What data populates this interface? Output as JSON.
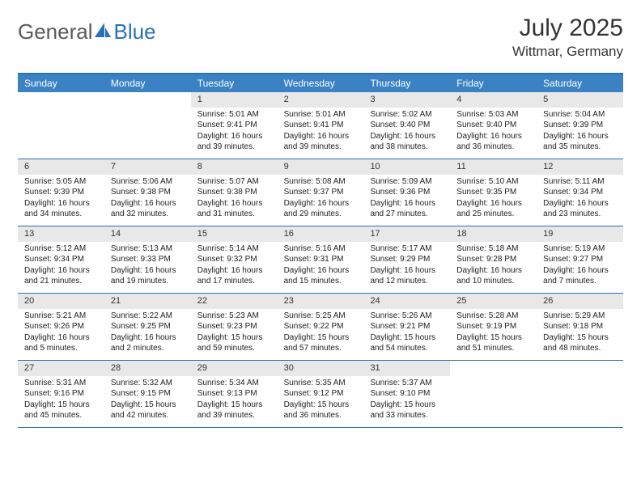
{
  "brand": {
    "general": "General",
    "blue": "Blue"
  },
  "title": "July 2025",
  "location": "Wittmar, Germany",
  "colors": {
    "header_bar": "#3a82c4",
    "border": "#2a71b8",
    "daynum_bg": "#e8e8e8",
    "text": "#222222",
    "logo_gray": "#5a5a5a",
    "logo_blue": "#2a71b8"
  },
  "day_names": [
    "Sunday",
    "Monday",
    "Tuesday",
    "Wednesday",
    "Thursday",
    "Friday",
    "Saturday"
  ],
  "weeks": [
    [
      {
        "empty": true
      },
      {
        "empty": true
      },
      {
        "num": "1",
        "sunrise": "Sunrise: 5:01 AM",
        "sunset": "Sunset: 9:41 PM",
        "day1": "Daylight: 16 hours",
        "day2": "and 39 minutes."
      },
      {
        "num": "2",
        "sunrise": "Sunrise: 5:01 AM",
        "sunset": "Sunset: 9:41 PM",
        "day1": "Daylight: 16 hours",
        "day2": "and 39 minutes."
      },
      {
        "num": "3",
        "sunrise": "Sunrise: 5:02 AM",
        "sunset": "Sunset: 9:40 PM",
        "day1": "Daylight: 16 hours",
        "day2": "and 38 minutes."
      },
      {
        "num": "4",
        "sunrise": "Sunrise: 5:03 AM",
        "sunset": "Sunset: 9:40 PM",
        "day1": "Daylight: 16 hours",
        "day2": "and 36 minutes."
      },
      {
        "num": "5",
        "sunrise": "Sunrise: 5:04 AM",
        "sunset": "Sunset: 9:39 PM",
        "day1": "Daylight: 16 hours",
        "day2": "and 35 minutes."
      }
    ],
    [
      {
        "num": "6",
        "sunrise": "Sunrise: 5:05 AM",
        "sunset": "Sunset: 9:39 PM",
        "day1": "Daylight: 16 hours",
        "day2": "and 34 minutes."
      },
      {
        "num": "7",
        "sunrise": "Sunrise: 5:06 AM",
        "sunset": "Sunset: 9:38 PM",
        "day1": "Daylight: 16 hours",
        "day2": "and 32 minutes."
      },
      {
        "num": "8",
        "sunrise": "Sunrise: 5:07 AM",
        "sunset": "Sunset: 9:38 PM",
        "day1": "Daylight: 16 hours",
        "day2": "and 31 minutes."
      },
      {
        "num": "9",
        "sunrise": "Sunrise: 5:08 AM",
        "sunset": "Sunset: 9:37 PM",
        "day1": "Daylight: 16 hours",
        "day2": "and 29 minutes."
      },
      {
        "num": "10",
        "sunrise": "Sunrise: 5:09 AM",
        "sunset": "Sunset: 9:36 PM",
        "day1": "Daylight: 16 hours",
        "day2": "and 27 minutes."
      },
      {
        "num": "11",
        "sunrise": "Sunrise: 5:10 AM",
        "sunset": "Sunset: 9:35 PM",
        "day1": "Daylight: 16 hours",
        "day2": "and 25 minutes."
      },
      {
        "num": "12",
        "sunrise": "Sunrise: 5:11 AM",
        "sunset": "Sunset: 9:34 PM",
        "day1": "Daylight: 16 hours",
        "day2": "and 23 minutes."
      }
    ],
    [
      {
        "num": "13",
        "sunrise": "Sunrise: 5:12 AM",
        "sunset": "Sunset: 9:34 PM",
        "day1": "Daylight: 16 hours",
        "day2": "and 21 minutes."
      },
      {
        "num": "14",
        "sunrise": "Sunrise: 5:13 AM",
        "sunset": "Sunset: 9:33 PM",
        "day1": "Daylight: 16 hours",
        "day2": "and 19 minutes."
      },
      {
        "num": "15",
        "sunrise": "Sunrise: 5:14 AM",
        "sunset": "Sunset: 9:32 PM",
        "day1": "Daylight: 16 hours",
        "day2": "and 17 minutes."
      },
      {
        "num": "16",
        "sunrise": "Sunrise: 5:16 AM",
        "sunset": "Sunset: 9:31 PM",
        "day1": "Daylight: 16 hours",
        "day2": "and 15 minutes."
      },
      {
        "num": "17",
        "sunrise": "Sunrise: 5:17 AM",
        "sunset": "Sunset: 9:29 PM",
        "day1": "Daylight: 16 hours",
        "day2": "and 12 minutes."
      },
      {
        "num": "18",
        "sunrise": "Sunrise: 5:18 AM",
        "sunset": "Sunset: 9:28 PM",
        "day1": "Daylight: 16 hours",
        "day2": "and 10 minutes."
      },
      {
        "num": "19",
        "sunrise": "Sunrise: 5:19 AM",
        "sunset": "Sunset: 9:27 PM",
        "day1": "Daylight: 16 hours",
        "day2": "and 7 minutes."
      }
    ],
    [
      {
        "num": "20",
        "sunrise": "Sunrise: 5:21 AM",
        "sunset": "Sunset: 9:26 PM",
        "day1": "Daylight: 16 hours",
        "day2": "and 5 minutes."
      },
      {
        "num": "21",
        "sunrise": "Sunrise: 5:22 AM",
        "sunset": "Sunset: 9:25 PM",
        "day1": "Daylight: 16 hours",
        "day2": "and 2 minutes."
      },
      {
        "num": "22",
        "sunrise": "Sunrise: 5:23 AM",
        "sunset": "Sunset: 9:23 PM",
        "day1": "Daylight: 15 hours",
        "day2": "and 59 minutes."
      },
      {
        "num": "23",
        "sunrise": "Sunrise: 5:25 AM",
        "sunset": "Sunset: 9:22 PM",
        "day1": "Daylight: 15 hours",
        "day2": "and 57 minutes."
      },
      {
        "num": "24",
        "sunrise": "Sunrise: 5:26 AM",
        "sunset": "Sunset: 9:21 PM",
        "day1": "Daylight: 15 hours",
        "day2": "and 54 minutes."
      },
      {
        "num": "25",
        "sunrise": "Sunrise: 5:28 AM",
        "sunset": "Sunset: 9:19 PM",
        "day1": "Daylight: 15 hours",
        "day2": "and 51 minutes."
      },
      {
        "num": "26",
        "sunrise": "Sunrise: 5:29 AM",
        "sunset": "Sunset: 9:18 PM",
        "day1": "Daylight: 15 hours",
        "day2": "and 48 minutes."
      }
    ],
    [
      {
        "num": "27",
        "sunrise": "Sunrise: 5:31 AM",
        "sunset": "Sunset: 9:16 PM",
        "day1": "Daylight: 15 hours",
        "day2": "and 45 minutes."
      },
      {
        "num": "28",
        "sunrise": "Sunrise: 5:32 AM",
        "sunset": "Sunset: 9:15 PM",
        "day1": "Daylight: 15 hours",
        "day2": "and 42 minutes."
      },
      {
        "num": "29",
        "sunrise": "Sunrise: 5:34 AM",
        "sunset": "Sunset: 9:13 PM",
        "day1": "Daylight: 15 hours",
        "day2": "and 39 minutes."
      },
      {
        "num": "30",
        "sunrise": "Sunrise: 5:35 AM",
        "sunset": "Sunset: 9:12 PM",
        "day1": "Daylight: 15 hours",
        "day2": "and 36 minutes."
      },
      {
        "num": "31",
        "sunrise": "Sunrise: 5:37 AM",
        "sunset": "Sunset: 9:10 PM",
        "day1": "Daylight: 15 hours",
        "day2": "and 33 minutes."
      },
      {
        "empty": true
      },
      {
        "empty": true
      }
    ]
  ]
}
